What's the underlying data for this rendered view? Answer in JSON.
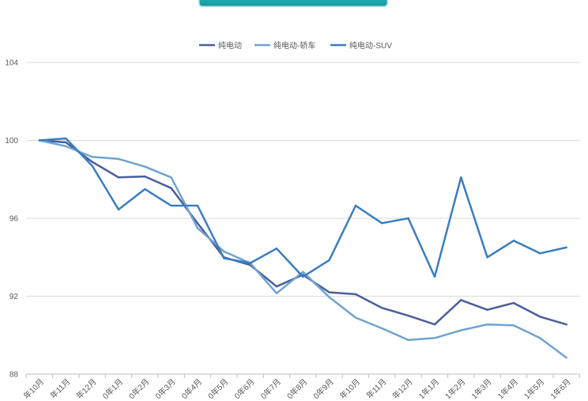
{
  "chart_data": {
    "type": "line",
    "categories": [
      "年10月",
      "年11月",
      "年12月",
      "0年1月",
      "0年2月",
      "0年3月",
      "0年4月",
      "0年5月",
      "0年6月",
      "0年7月",
      "0年8月",
      "0年9月",
      "年10月",
      "年11月",
      "年12月",
      "1年1月",
      "1年2月",
      "1年3月",
      "1年4月",
      "1年5月",
      "1年6月"
    ],
    "series": [
      {
        "name": "纯电动",
        "color": "#4a5e9c",
        "values": [
          100,
          99.9,
          98.9,
          98.1,
          98.15,
          97.55,
          95.75,
          94.0,
          93.6,
          92.5,
          93.1,
          92.2,
          92.1,
          91.4,
          91.0,
          90.55,
          91.8,
          91.3,
          91.65,
          90.95,
          90.55
        ]
      },
      {
        "name": "纯电动-轿车",
        "color": "#6fa3d0",
        "values": [
          100,
          99.7,
          99.15,
          99.05,
          98.65,
          98.1,
          95.5,
          94.3,
          93.7,
          92.15,
          93.25,
          91.95,
          90.9,
          90.35,
          89.75,
          89.85,
          90.25,
          90.55,
          90.5,
          89.85,
          88.85
        ]
      },
      {
        "name": "纯电动-SUV",
        "color": "#3a7dc0",
        "values": [
          100,
          100.1,
          98.7,
          96.45,
          97.5,
          96.65,
          96.65,
          93.95,
          93.7,
          94.45,
          93.0,
          93.85,
          96.65,
          95.75,
          96.0,
          93.0,
          98.1,
          94.0,
          94.85,
          94.2,
          94.5
        ]
      }
    ],
    "yticks": [
      104,
      100,
      96,
      92,
      88
    ],
    "ylim": [
      88,
      104
    ],
    "grid": true,
    "legend": "top-center"
  },
  "colors": {
    "banner": "#1fa7a8",
    "gridline": "#d9d9d9",
    "axis_text": "#595959"
  }
}
